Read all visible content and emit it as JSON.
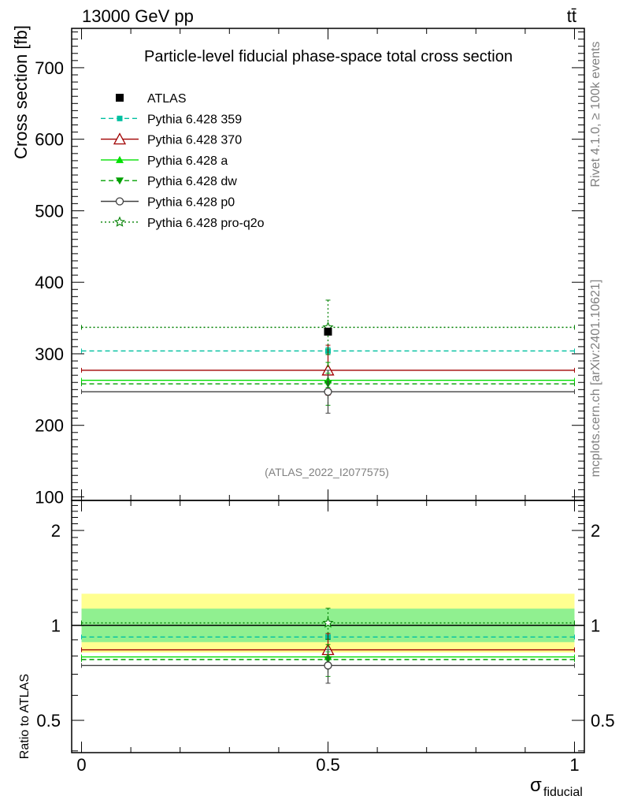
{
  "header": {
    "left": "13000 GeV pp",
    "right": "tt̄"
  },
  "side_labels": {
    "rivet": "Rivet 4.1.0, ≥ 100k events",
    "mcplots": "mcplots.cern.ch [arXiv:2401.10621]"
  },
  "chart_data": {
    "type": "scatter",
    "title": "Particle-level fiducial phase-space total cross section",
    "analysis_tag": "(ATLAS_2022_I2077575)",
    "x_label": "σ",
    "x_label_sub": "fiducial",
    "y_label": "Cross section [fb]",
    "ratio_y_label": "Ratio to ATLAS",
    "xlim": [
      -0.02,
      1.02
    ],
    "ylim": [
      95,
      755
    ],
    "ratio_ylim": [
      0.395,
      2.49
    ],
    "x_ticks": [
      {
        "v": 0,
        "label": "0"
      },
      {
        "v": 0.5,
        "label": "0.5"
      },
      {
        "v": 1,
        "label": "1"
      }
    ],
    "y_ticks": [
      {
        "v": 100,
        "label": "100"
      },
      {
        "v": 200,
        "label": "200"
      },
      {
        "v": 300,
        "label": "300"
      },
      {
        "v": 400,
        "label": "400"
      },
      {
        "v": 500,
        "label": "500"
      },
      {
        "v": 600,
        "label": "600"
      },
      {
        "v": 700,
        "label": "700"
      }
    ],
    "ratio_ticks": [
      {
        "v": 0.5,
        "label": "0.5"
      },
      {
        "v": 1,
        "label": "1"
      },
      {
        "v": 2,
        "label": "2"
      }
    ],
    "data": {
      "name": "ATLAS",
      "x": 0.5,
      "value": 331,
      "band_inner": [
        0.885,
        1.13
      ],
      "band_outer": [
        0.82,
        1.26
      ]
    },
    "series": [
      {
        "name": "Pythia 6.428 359",
        "value": 304,
        "err": 5,
        "color": "#00c0a0",
        "marker": "square-small",
        "dash": "6,4"
      },
      {
        "name": "Pythia 6.428 370",
        "value": 277,
        "err": 35,
        "color": "#a00000",
        "marker": "triangle-open",
        "dash": ""
      },
      {
        "name": "Pythia 6.428 a",
        "value": 263,
        "err": 10,
        "color": "#00e000",
        "marker": "triangle-filled",
        "dash": ""
      },
      {
        "name": "Pythia 6.428 dw",
        "value": 258,
        "err": 30,
        "color": "#00a000",
        "marker": "triangle-down",
        "dash": "6,4"
      },
      {
        "name": "Pythia 6.428 p0",
        "value": 247,
        "err": 30,
        "color": "#404040",
        "marker": "circle-open",
        "dash": ""
      },
      {
        "name": "Pythia 6.428 pro-q2o",
        "value": 337,
        "err": 38,
        "color": "#008000",
        "marker": "star-open",
        "dash": "2,3"
      }
    ]
  }
}
